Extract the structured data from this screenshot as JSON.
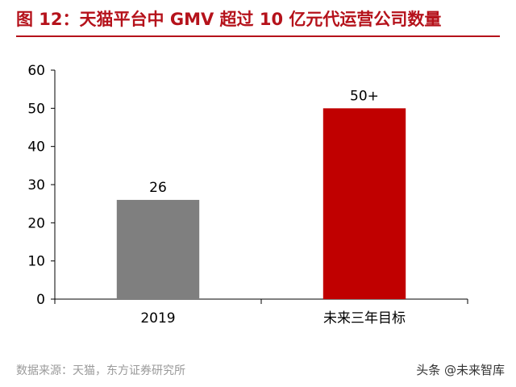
{
  "figure_title": "图 12：天猫平台中 GMV 超过 10 亿元代运营公司数量",
  "source_note": "数据来源：天猫，东方证券研究所",
  "watermark": "头条 @未来智库",
  "colors": {
    "title": "#b5121b",
    "bar_2019": "#7f7f7f",
    "bar_target": "#c00000",
    "axis": "#000000",
    "source": "#9a9a9a"
  },
  "chart_data": {
    "type": "bar",
    "categories": [
      "2019",
      "未来三年目标"
    ],
    "values": [
      26,
      50
    ],
    "data_labels": [
      "26",
      "50+"
    ],
    "bar_colors": [
      "#7f7f7f",
      "#c00000"
    ],
    "y_ticks": [
      0,
      10,
      20,
      30,
      40,
      50,
      60
    ],
    "ylim": [
      0,
      60
    ],
    "grid": false,
    "title": "",
    "xlabel": "",
    "ylabel": ""
  }
}
